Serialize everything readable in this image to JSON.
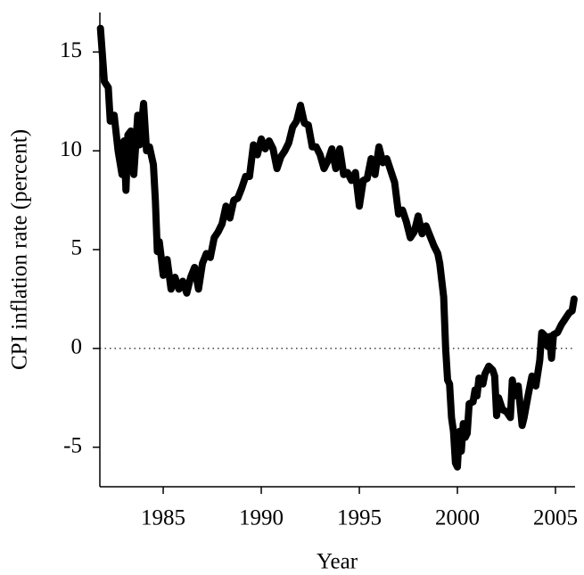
{
  "chart_data": {
    "type": "line",
    "xlabel": "Year",
    "ylabel": "CPI inflation rate (percent)",
    "xlim": [
      1981.77,
      2006.0
    ],
    "ylim": [
      -7,
      17
    ],
    "xticks": [
      1985,
      1990,
      1995,
      2000,
      2005
    ],
    "yticks": [
      -5,
      0,
      5,
      10,
      15
    ],
    "hline": 0,
    "series": [
      {
        "color": "#000000",
        "x": [
          1981.8,
          1982.0,
          1982.2,
          1982.3,
          1982.5,
          1982.7,
          1982.9,
          1983.0,
          1983.1,
          1983.2,
          1983.35,
          1983.5,
          1983.7,
          1983.8,
          1984.0,
          1984.15,
          1984.3,
          1984.5,
          1984.6,
          1984.7,
          1984.8,
          1984.9,
          1985.0,
          1985.2,
          1985.4,
          1985.6,
          1985.8,
          1986.0,
          1986.2,
          1986.4,
          1986.6,
          1986.8,
          1987.0,
          1987.2,
          1987.4,
          1987.6,
          1987.8,
          1988.0,
          1988.2,
          1988.4,
          1988.6,
          1988.8,
          1989.0,
          1989.2,
          1989.4,
          1989.6,
          1989.8,
          1990.0,
          1990.2,
          1990.4,
          1990.6,
          1990.8,
          1991.0,
          1991.2,
          1991.4,
          1991.6,
          1991.8,
          1992.0,
          1992.2,
          1992.4,
          1992.6,
          1992.8,
          1993.0,
          1993.2,
          1993.4,
          1993.6,
          1993.8,
          1994.0,
          1994.2,
          1994.4,
          1994.6,
          1994.8,
          1995.0,
          1995.2,
          1995.4,
          1995.6,
          1995.8,
          1996.0,
          1996.2,
          1996.4,
          1996.6,
          1996.8,
          1997.0,
          1997.2,
          1997.4,
          1997.6,
          1997.8,
          1998.0,
          1998.2,
          1998.4,
          1998.6,
          1998.8,
          1999.0,
          1999.1,
          1999.3,
          1999.4,
          1999.5,
          1999.6,
          1999.7,
          1999.8,
          1999.9,
          2000.0,
          2000.1,
          2000.2,
          2000.3,
          2000.4,
          2000.5,
          2000.6,
          2000.8,
          2000.9,
          2001.0,
          2001.1,
          2001.3,
          2001.4,
          2001.6,
          2001.8,
          2001.9,
          2002.0,
          2002.1,
          2002.3,
          2002.5,
          2002.7,
          2002.8,
          2002.9,
          2003.1,
          2003.3,
          2003.4,
          2003.6,
          2003.8,
          2004.0,
          2004.2,
          2004.3,
          2004.5,
          2004.6,
          2004.7,
          2004.8,
          2004.9,
          2005.1,
          2005.3,
          2005.5,
          2005.7,
          2005.85,
          2005.95
        ],
        "values": [
          16.2,
          13.5,
          13.2,
          11.5,
          11.8,
          10.0,
          8.8,
          10.5,
          8.0,
          10.8,
          11.0,
          8.8,
          11.8,
          10.3,
          12.4,
          10.0,
          10.2,
          9.3,
          7.5,
          4.9,
          5.4,
          4.6,
          3.7,
          4.5,
          3.0,
          3.6,
          3.0,
          3.4,
          2.8,
          3.6,
          4.1,
          3.0,
          4.3,
          4.8,
          4.6,
          5.6,
          5.9,
          6.3,
          7.2,
          6.6,
          7.5,
          7.6,
          8.1,
          8.7,
          8.7,
          10.3,
          9.8,
          10.6,
          10.1,
          10.5,
          10.1,
          9.1,
          9.7,
          10.0,
          10.4,
          11.2,
          11.5,
          12.3,
          11.4,
          11.3,
          10.2,
          10.2,
          9.8,
          9.1,
          9.5,
          10.1,
          9.1,
          10.1,
          8.8,
          8.9,
          8.5,
          8.9,
          7.2,
          8.5,
          8.6,
          9.6,
          8.8,
          10.2,
          9.4,
          9.6,
          9.0,
          8.4,
          6.8,
          7.0,
          6.4,
          5.6,
          5.9,
          6.7,
          5.8,
          6.2,
          5.7,
          5.2,
          4.8,
          4.3,
          2.6,
          0.0,
          -1.6,
          -1.8,
          -3.5,
          -4.2,
          -5.8,
          -6.0,
          -4.2,
          -5.2,
          -3.8,
          -4.5,
          -4.3,
          -2.8,
          -2.7,
          -2.1,
          -2.4,
          -1.5,
          -1.8,
          -1.3,
          -0.9,
          -1.1,
          -1.4,
          -3.4,
          -2.5,
          -3.1,
          -3.2,
          -3.5,
          -1.6,
          -2.4,
          -1.9,
          -3.9,
          -3.5,
          -2.4,
          -1.4,
          -1.9,
          -0.6,
          0.8,
          0.6,
          0.1,
          0.6,
          -0.5,
          0.7,
          0.8,
          1.2,
          1.5,
          1.8,
          1.9,
          2.5
        ]
      }
    ]
  }
}
